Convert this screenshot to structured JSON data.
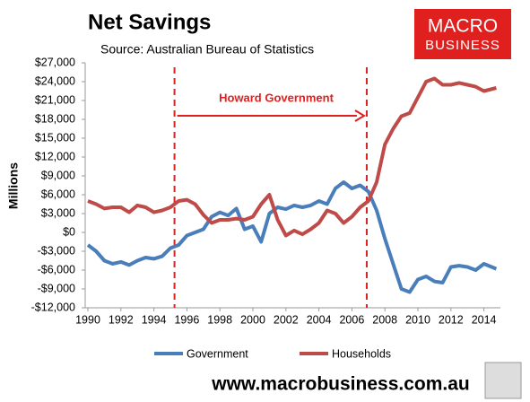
{
  "chart_data": {
    "type": "line",
    "title": "Net Savings",
    "subtitle": "Source: Australian Bureau of Statistics",
    "logo": [
      "MACRO",
      "BUSINESS"
    ],
    "footer": "www.macrobusiness.com.au",
    "y_label": "Millions",
    "annotation": "Howard Government",
    "vlines": [
      1995.25,
      2006.9
    ],
    "xlim": [
      1990,
      2015
    ],
    "xticks": [
      1990,
      1992,
      1994,
      1996,
      1998,
      2000,
      2002,
      2004,
      2006,
      2008,
      2010,
      2012,
      2014
    ],
    "ylim": [
      -12000,
      27000
    ],
    "yticks": [
      {
        "value": -12000,
        "label": "-$12,000"
      },
      {
        "value": -9000,
        "label": "-$9,000"
      },
      {
        "value": -6000,
        "label": "-$6,000"
      },
      {
        "value": -3000,
        "label": "-$3,000"
      },
      {
        "value": 0,
        "label": "$0"
      },
      {
        "value": 3000,
        "label": "$3,000"
      },
      {
        "value": 6000,
        "label": "$6,000"
      },
      {
        "value": 9000,
        "label": "$9,000"
      },
      {
        "value": 12000,
        "label": "$12,000"
      },
      {
        "value": 15000,
        "label": "$15,000"
      },
      {
        "value": 18000,
        "label": "$18,000"
      },
      {
        "value": 21000,
        "label": "$21,000"
      },
      {
        "value": 24000,
        "label": "$24,000"
      },
      {
        "value": 27000,
        "label": "$27,000"
      }
    ],
    "x": [
      1990,
      1990.5,
      1991,
      1991.5,
      1992,
      1992.5,
      1993,
      1993.5,
      1994,
      1994.5,
      1995,
      1995.5,
      1996,
      1996.5,
      1997,
      1997.5,
      1998,
      1998.5,
      1999,
      1999.5,
      2000,
      2000.5,
      2001,
      2001.5,
      2002,
      2002.5,
      2003,
      2003.5,
      2004,
      2004.5,
      2005,
      2005.5,
      2006,
      2006.5,
      2007,
      2007.5,
      2008,
      2008.5,
      2009,
      2009.5,
      2010,
      2010.5,
      2011,
      2011.5,
      2012,
      2012.5,
      2013,
      2013.5,
      2014,
      2014.75
    ],
    "series": [
      {
        "name": "Government",
        "color": "#4a7ebb",
        "values": [
          -2000,
          -3000,
          -4500,
          -5000,
          -4700,
          -5200,
          -4500,
          -4000,
          -4200,
          -3800,
          -2500,
          -2000,
          -500,
          0,
          500,
          2500,
          3200,
          2700,
          3800,
          500,
          1000,
          -1500,
          3000,
          4000,
          3700,
          4300,
          4000,
          4300,
          5000,
          4500,
          7000,
          8000,
          7000,
          7500,
          6500,
          3500,
          -1000,
          -5000,
          -9000,
          -9500,
          -7500,
          -7000,
          -7800,
          -8000,
          -5500,
          -5300,
          -5500,
          -6000,
          -5000,
          -5800
        ]
      },
      {
        "name": "Households",
        "color": "#be4b48",
        "values": [
          5000,
          4500,
          3800,
          4000,
          4000,
          3200,
          4300,
          4000,
          3200,
          3500,
          4000,
          5000,
          5200,
          4500,
          2800,
          1500,
          2000,
          2000,
          2200,
          2000,
          2500,
          4500,
          6000,
          2000,
          -500,
          300,
          -300,
          500,
          1500,
          3500,
          3000,
          1500,
          2500,
          4000,
          5000,
          8000,
          14000,
          16500,
          18500,
          19000,
          21500,
          24000,
          24500,
          23500,
          23500,
          23800,
          23500,
          23200,
          22500,
          23000
        ]
      }
    ]
  }
}
